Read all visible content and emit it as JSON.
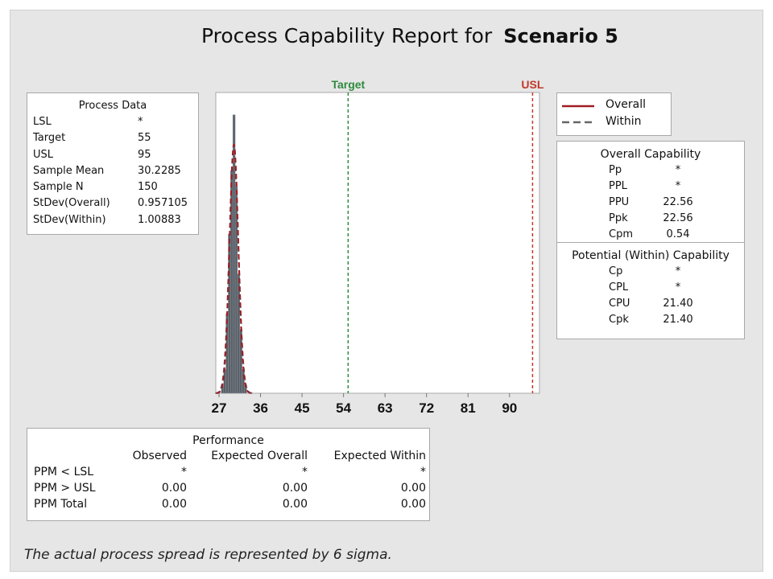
{
  "title": {
    "main": "Process Capability Report for",
    "scenario": "Scenario 5"
  },
  "process_data": {
    "heading": "Process Data",
    "rows": [
      [
        "LSL",
        "*"
      ],
      [
        "Target",
        "55"
      ],
      [
        "USL",
        "95"
      ],
      [
        "Sample Mean",
        "30.2285"
      ],
      [
        "Sample N",
        "150"
      ],
      [
        "StDev(Overall)",
        "0.957105"
      ],
      [
        "StDev(Within)",
        "1.00883"
      ]
    ]
  },
  "legend": {
    "overall": "Overall",
    "within": "Within"
  },
  "overall_capability": {
    "heading": "Overall Capability",
    "rows": [
      [
        "Pp",
        "*"
      ],
      [
        "PPL",
        "*"
      ],
      [
        "PPU",
        "22.56"
      ],
      [
        "Ppk",
        "22.56"
      ],
      [
        "Cpm",
        "0.54"
      ]
    ]
  },
  "within_capability": {
    "heading": "Potential (Within) Capability",
    "rows": [
      [
        "Cp",
        "*"
      ],
      [
        "CPL",
        "*"
      ],
      [
        "CPU",
        "21.40"
      ],
      [
        "Cpk",
        "21.40"
      ]
    ]
  },
  "performance": {
    "heading": "Performance",
    "columns": [
      "Observed",
      "Expected Overall",
      "Expected Within"
    ],
    "rows": [
      {
        "label": "PPM < LSL",
        "values": [
          "*",
          "*",
          "*"
        ]
      },
      {
        "label": "PPM > USL",
        "values": [
          "0.00",
          "0.00",
          "0.00"
        ]
      },
      {
        "label": "PPM Total",
        "values": [
          "0.00",
          "0.00",
          "0.00"
        ]
      }
    ]
  },
  "footer": "The actual process spread is represented by 6 sigma.",
  "chart_data": {
    "type": "bar",
    "title": "Process Capability Report for Scenario 5",
    "xlim": [
      26.3,
      96.5
    ],
    "xticks": [
      "27",
      "36",
      "45",
      "54",
      "63",
      "72",
      "81",
      "90"
    ],
    "xtick_values": [
      27,
      36,
      45,
      54,
      63,
      72,
      81,
      90
    ],
    "bin_width": 0.5,
    "bin_centers": [
      27.75,
      28.25,
      28.75,
      29.25,
      29.75,
      30.25,
      30.75,
      31.25,
      31.75,
      32.25,
      32.75
    ],
    "counts": [
      1,
      3,
      10,
      20,
      28,
      35,
      26,
      15,
      8,
      3,
      1
    ],
    "ylim": [
      0,
      37
    ],
    "target": {
      "label": "Target",
      "value": 55,
      "color": "#2e8b3e"
    },
    "usl": {
      "label": "USL",
      "value": 95,
      "color": "#c0392b"
    },
    "mean": 30.2285,
    "sd_overall": 0.957105,
    "sd_within": 1.00883,
    "n": 150,
    "bar_color": "#5a6068",
    "overall_color": "#a01c24",
    "within_color": "#666666"
  }
}
